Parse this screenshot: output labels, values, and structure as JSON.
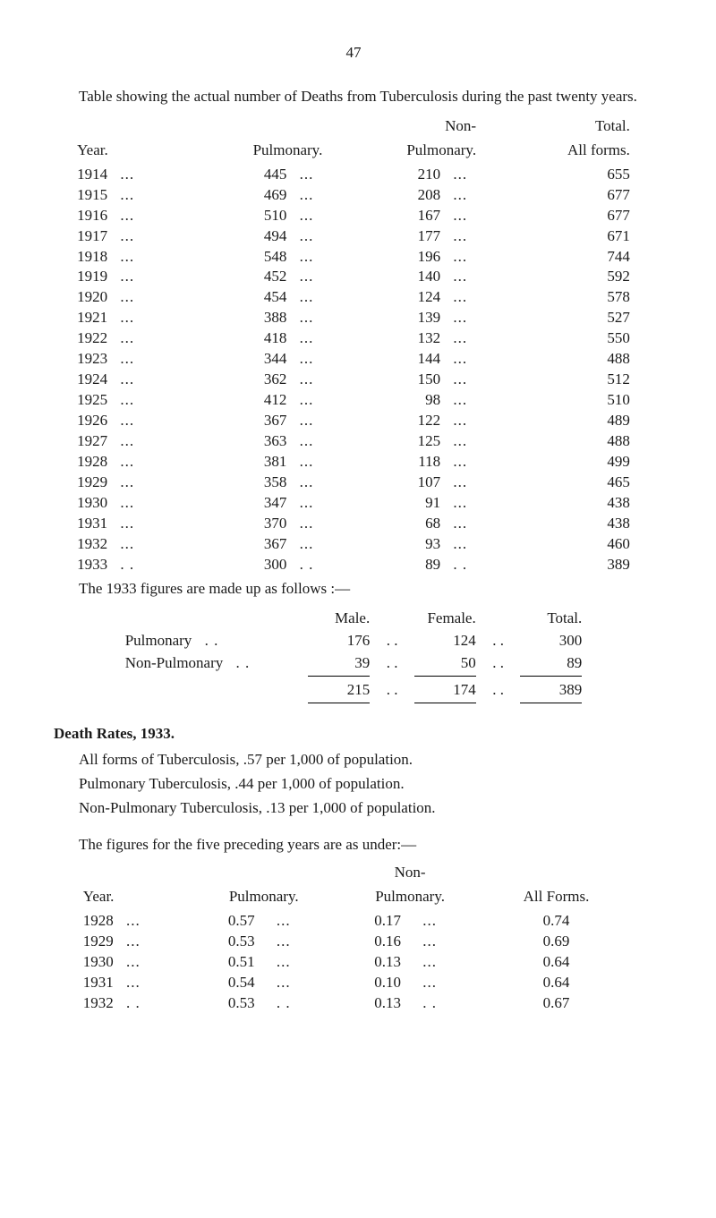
{
  "page_number": "47",
  "intro": "Table showing the actual number of Deaths from Tuberculosis during the past twenty years.",
  "table1": {
    "col_year": "Year.",
    "col_pulmonary": "Pulmonary.",
    "col_non_line1": "Non-",
    "col_non_line2": "Pulmonary.",
    "col_total_line1": "Total.",
    "col_total_line2": "All forms.",
    "rows": [
      {
        "y": "1914",
        "p": "445",
        "n": "210",
        "t": "655"
      },
      {
        "y": "1915",
        "p": "469",
        "n": "208",
        "t": "677"
      },
      {
        "y": "1916",
        "p": "510",
        "n": "167",
        "t": "677"
      },
      {
        "y": "1917",
        "p": "494",
        "n": "177",
        "t": "671"
      },
      {
        "y": "1918",
        "p": "548",
        "n": "196",
        "t": "744"
      },
      {
        "y": "1919",
        "p": "452",
        "n": "140",
        "t": "592"
      },
      {
        "y": "1920",
        "p": "454",
        "n": "124",
        "t": "578"
      },
      {
        "y": "1921",
        "p": "388",
        "n": "139",
        "t": "527"
      },
      {
        "y": "1922",
        "p": "418",
        "n": "132",
        "t": "550"
      },
      {
        "y": "1923",
        "p": "344",
        "n": "144",
        "t": "488"
      },
      {
        "y": "1924",
        "p": "362",
        "n": "150",
        "t": "512"
      },
      {
        "y": "1925",
        "p": "412",
        "n": "98",
        "t": "510"
      },
      {
        "y": "1926",
        "p": "367",
        "n": "122",
        "t": "489"
      },
      {
        "y": "1927",
        "p": "363",
        "n": "125",
        "t": "488"
      },
      {
        "y": "1928",
        "p": "381",
        "n": "118",
        "t": "499"
      },
      {
        "y": "1929",
        "p": "358",
        "n": "107",
        "t": "465"
      },
      {
        "y": "1930",
        "p": "347",
        "n": "91",
        "t": "438"
      },
      {
        "y": "1931",
        "p": "370",
        "n": "68",
        "t": "438"
      },
      {
        "y": "1932",
        "p": "367",
        "n": "93",
        "t": "460"
      },
      {
        "y": "1933",
        "p": "300",
        "n": "89",
        "t": "389"
      }
    ]
  },
  "follows_line": "The 1933 figures are made up as follows :—",
  "table2": {
    "col_male": "Male.",
    "col_female": "Female.",
    "col_total": "Total.",
    "rows": [
      {
        "lbl": "Pulmonary",
        "m": "176",
        "f": "124",
        "t": "300"
      },
      {
        "lbl": "Non-Pulmonary",
        "m": "39",
        "f": "50",
        "t": "89"
      }
    ],
    "totals": {
      "m": "215",
      "f": "174",
      "t": "389"
    }
  },
  "death_rates_heading": "Death Rates, 1933.",
  "death_rates_p1": "All forms of Tuberculosis, .57 per 1,000 of population.",
  "death_rates_p2": "Pulmonary Tuberculosis, .44 per 1,000 of population.",
  "death_rates_p3": "Non-Pulmonary Tuberculosis, .13 per 1,000 of population.",
  "preceding_intro": "The figures for the five preceding years are as under:—",
  "table3": {
    "col_year": "Year.",
    "col_pulmonary": "Pulmonary.",
    "col_non_line1": "Non-",
    "col_non_line2": "Pulmonary.",
    "col_all": "All Forms.",
    "rows": [
      {
        "y": "1928",
        "p": "0.57",
        "n": "0.17",
        "t": "0.74"
      },
      {
        "y": "1929",
        "p": "0.53",
        "n": "0.16",
        "t": "0.69"
      },
      {
        "y": "1930",
        "p": "0.51",
        "n": "0.13",
        "t": "0.64"
      },
      {
        "y": "1931",
        "p": "0.54",
        "n": "0.10",
        "t": "0.64"
      },
      {
        "y": "1932",
        "p": "0.53",
        "n": "0.13",
        "t": "0.67"
      }
    ]
  }
}
